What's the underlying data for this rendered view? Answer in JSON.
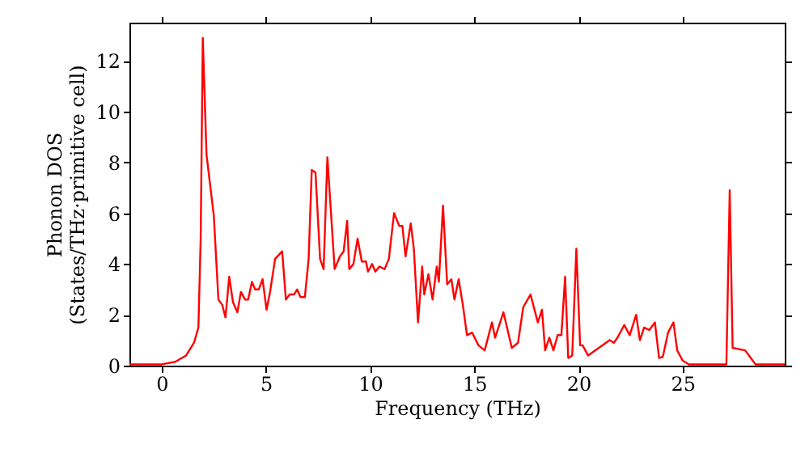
{
  "chart_data": {
    "type": "line",
    "xlabel": "Frequency (THz)",
    "ylabel": "Phonon DOS\n(States/THz·primitive cell)",
    "x": [
      -1.55,
      0,
      0.65,
      1.17,
      1.55,
      1.76,
      1.87,
      1.97,
      2.15,
      2.5,
      2.72,
      2.9,
      3.06,
      3.24,
      3.42,
      3.63,
      3.8,
      4.0,
      4.15,
      4.33,
      4.48,
      4.66,
      4.84,
      5.03,
      5.2,
      5.44,
      5.78,
      5.96,
      6.14,
      6.35,
      6.5,
      6.66,
      6.87,
      7.05,
      7.2,
      7.38,
      7.6,
      7.77,
      7.95,
      8.3,
      8.55,
      8.73,
      8.9,
      9.0,
      9.2,
      9.4,
      9.6,
      9.8,
      9.9,
      10.1,
      10.25,
      10.45,
      10.7,
      10.9,
      11.15,
      11.4,
      11.55,
      11.7,
      11.95,
      12.1,
      12.3,
      12.5,
      12.6,
      12.8,
      13.0,
      13.2,
      13.3,
      13.5,
      13.7,
      13.9,
      14.05,
      14.25,
      14.45,
      14.65,
      14.9,
      15.2,
      15.5,
      15.85,
      16.0,
      16.4,
      16.8,
      17.1,
      17.35,
      17.7,
      18.05,
      18.25,
      18.4,
      18.6,
      18.8,
      19.0,
      19.18,
      19.36,
      19.51,
      19.7,
      19.9,
      20.08,
      20.2,
      20.46,
      21.5,
      21.7,
      21.87,
      22.2,
      22.46,
      22.77,
      22.95,
      23.15,
      23.4,
      23.67,
      23.87,
      24.05,
      24.3,
      24.56,
      24.74,
      25.0,
      25.3,
      27.1,
      27.26,
      27.4,
      28.0,
      28.5,
      29.9
    ],
    "series": [
      {
        "color": "#ff0000",
        "values": [
          0.05,
          0.05,
          0.15,
          0.4,
          0.9,
          1.5,
          5,
          12.9,
          8.3,
          5.9,
          2.6,
          2.4,
          1.9,
          3.5,
          2.5,
          2.1,
          2.9,
          2.6,
          2.6,
          3.3,
          3.0,
          3.0,
          3.4,
          2.2,
          2.9,
          4.2,
          4.5,
          2.6,
          2.8,
          2.8,
          3.0,
          2.7,
          2.7,
          4.2,
          7.7,
          7.6,
          4.2,
          3.8,
          8.2,
          3.8,
          4.3,
          4.5,
          5.7,
          3.8,
          4.0,
          5.0,
          4.1,
          4.1,
          3.7,
          4.0,
          3.7,
          3.9,
          3.8,
          4.2,
          6.0,
          5.5,
          5.5,
          4.3,
          5.6,
          4.6,
          1.7,
          3.9,
          2.8,
          3.6,
          2.6,
          3.9,
          3.3,
          6.3,
          3.2,
          3.4,
          2.6,
          3.4,
          2.4,
          1.2,
          1.3,
          0.8,
          0.6,
          1.7,
          1.1,
          2.1,
          0.7,
          0.9,
          2.3,
          2.8,
          1.7,
          2.2,
          0.6,
          1.1,
          0.6,
          1.2,
          1.2,
          3.5,
          0.3,
          0.4,
          4.6,
          0.8,
          0.8,
          0.4,
          1.0,
          0.9,
          1.1,
          1.6,
          1.2,
          2.0,
          1.0,
          1.5,
          1.4,
          1.7,
          0.3,
          0.35,
          1.3,
          1.7,
          0.6,
          0.2,
          0.05,
          0.05,
          6.9,
          0.7,
          0.6,
          0.05,
          0.05
        ]
      }
    ],
    "xlim": [
      -1.55,
      29.9
    ],
    "ylim": [
      0,
      13.5
    ],
    "xticks": [
      0,
      5,
      10,
      15,
      20,
      25
    ],
    "yticks": [
      0,
      2,
      4,
      6,
      8,
      10,
      12
    ],
    "grid": false
  }
}
